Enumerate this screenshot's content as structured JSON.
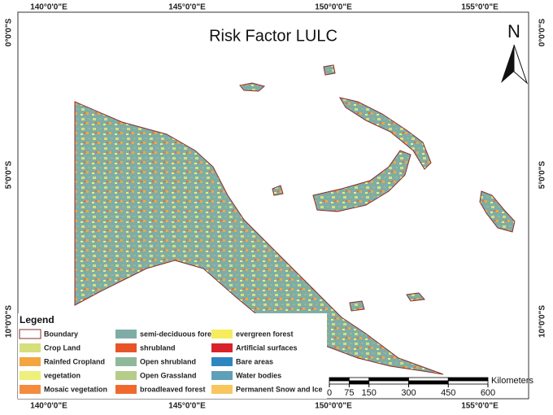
{
  "title": "Risk Factor LULC",
  "north": "N",
  "top_labels": [
    "140°0'0\"E",
    "145°0'0\"E",
    "150°0'0\"E",
    "155°0'0\"E"
  ],
  "bottom_labels": [
    "140°0'0\"E",
    "145°0'0\"E",
    "150°0'0\"E",
    "155°0'0\"E"
  ],
  "left_labels": [
    "0°0'0\"S",
    "5°0'0\"S",
    "10°0'0\"S"
  ],
  "right_labels": [
    "0°0'0\"S",
    "5°0'0\"S",
    "10°0'0\"S"
  ],
  "legend": {
    "title": "Legend",
    "items": [
      {
        "label": "Boundary",
        "color": "#ffffff"
      },
      {
        "label": "Crop Land",
        "color": "#d6df7c"
      },
      {
        "label": "Rainfed Cropland",
        "color": "#f3a640"
      },
      {
        "label": "vegetation",
        "color": "#eef07c"
      },
      {
        "label": "Mosaic vegetation",
        "color": "#f48b3e"
      },
      {
        "label": "semi-deciduous forest",
        "color": "#7fada6"
      },
      {
        "label": "shrubland",
        "color": "#e8542a"
      },
      {
        "label": "Open shrubland",
        "color": "#8fb89b"
      },
      {
        "label": "Open Grassland",
        "color": "#b5cd88"
      },
      {
        "label": "broadleaved forest",
        "color": "#f06a2e"
      },
      {
        "label": "evergreen forest",
        "color": "#f6ec5c"
      },
      {
        "label": "Artificial surfaces",
        "color": "#d8232a"
      },
      {
        "label": "Bare areas",
        "color": "#2e86c1"
      },
      {
        "label": "Water bodies",
        "color": "#5f9fb8"
      },
      {
        "label": "Permanent Snow and Ice",
        "color": "#f8c65c"
      }
    ]
  },
  "scale": {
    "ticks": [
      0,
      75,
      150,
      300,
      450,
      600
    ],
    "unit": "Kilometers"
  }
}
